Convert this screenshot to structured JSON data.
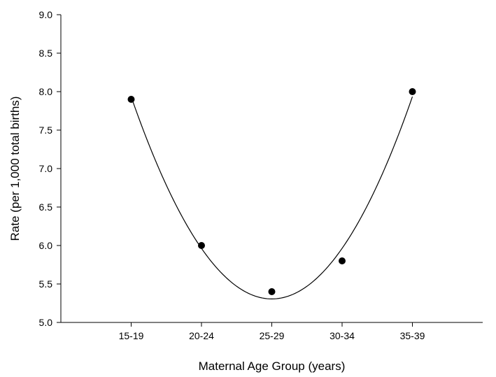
{
  "chart_data": {
    "type": "scatter",
    "title": "",
    "xlabel": "Maternal Age Group (years)",
    "ylabel": "Rate (per 1,000 total births)",
    "categories": [
      "15-19",
      "20-24",
      "25-29",
      "30-34",
      "35-39"
    ],
    "xlim": [
      0,
      6
    ],
    "ylim": [
      5.0,
      9.0
    ],
    "yticks": [
      "5.0",
      "5.5",
      "6.0",
      "6.5",
      "7.0",
      "7.5",
      "8.0",
      "8.5",
      "9.0"
    ],
    "grid": false,
    "legend": "none",
    "series": [
      {
        "x": [
          1,
          2,
          3,
          4,
          5
        ],
        "values": [
          7.9,
          6.0,
          5.4,
          5.8,
          8.0
        ],
        "marker": "circle",
        "color": "#000000"
      }
    ],
    "fit_curve": {
      "kind": "quadratic",
      "color": "#000000",
      "min_value": 5.32
    }
  }
}
